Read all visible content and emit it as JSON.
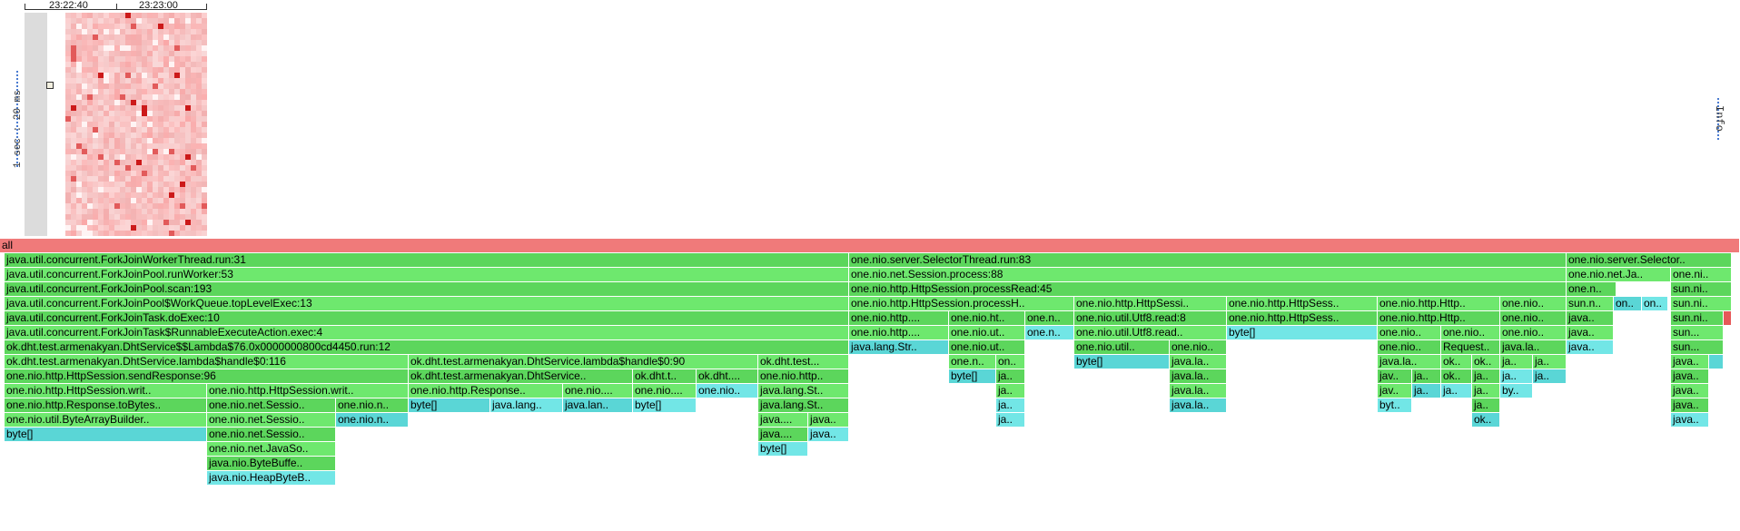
{
  "timeline": {
    "labels": [
      "23:22:40",
      "23:23:00"
    ],
    "scale": "1 sec : 20 ms",
    "info": "Info"
  },
  "colors": {
    "root": "#f07a7a",
    "green": "#5cd65c",
    "green_light": "#6ee86e",
    "teal": "#5ad6d6",
    "teal_light": "#72e6e6",
    "red": "#e65858"
  },
  "heat_seed": 7,
  "flame": [
    {
      "label": "all",
      "depth": 0,
      "start": 0,
      "w": 1916,
      "kind": "root"
    },
    {
      "label": "java.util.concurrent.ForkJoinWorkerThread.run:31",
      "depth": 1,
      "start": 5,
      "w": 930,
      "kind": "green"
    },
    {
      "label": "one.nio.server.SelectorThread.run:83",
      "depth": 1,
      "start": 935,
      "w": 790,
      "kind": "green"
    },
    {
      "label": "one.nio.server.Selector..",
      "depth": 1,
      "start": 1725,
      "w": 182,
      "kind": "green"
    },
    {
      "label": "java.util.concurrent.ForkJoinPool.runWorker:53",
      "depth": 2,
      "start": 5,
      "w": 930,
      "kind": "green"
    },
    {
      "label": "one.nio.net.Session.process:88",
      "depth": 2,
      "start": 935,
      "w": 790,
      "kind": "green"
    },
    {
      "label": "one.nio.net.Ja..",
      "depth": 2,
      "start": 1725,
      "w": 115,
      "kind": "green"
    },
    {
      "label": "one.ni..",
      "depth": 2,
      "start": 1840,
      "w": 67,
      "kind": "green"
    },
    {
      "label": "java.util.concurrent.ForkJoinPool.scan:193",
      "depth": 3,
      "start": 5,
      "w": 930,
      "kind": "green"
    },
    {
      "label": "one.nio.http.HttpSession.processRead:45",
      "depth": 3,
      "start": 935,
      "w": 790,
      "kind": "green"
    },
    {
      "label": "one.n..",
      "depth": 3,
      "start": 1725,
      "w": 55,
      "kind": "green"
    },
    {
      "label": "sun.ni..",
      "depth": 3,
      "start": 1840,
      "w": 67,
      "kind": "green"
    },
    {
      "label": "java.util.concurrent.ForkJoinPool$WorkQueue.topLevelExec:13",
      "depth": 4,
      "start": 5,
      "w": 930,
      "kind": "green"
    },
    {
      "label": "one.nio.http.HttpSession.processH..",
      "depth": 4,
      "start": 935,
      "w": 248,
      "kind": "green"
    },
    {
      "label": "one.nio.http.HttpSessi..",
      "depth": 4,
      "start": 1183,
      "w": 168,
      "kind": "green"
    },
    {
      "label": "one.nio.http.HttpSess..",
      "depth": 4,
      "start": 1351,
      "w": 166,
      "kind": "green"
    },
    {
      "label": "one.nio.http.Http..",
      "depth": 4,
      "start": 1517,
      "w": 135,
      "kind": "green"
    },
    {
      "label": "one.nio..",
      "depth": 4,
      "start": 1652,
      "w": 73,
      "kind": "green"
    },
    {
      "label": "sun.n..",
      "depth": 4,
      "start": 1725,
      "w": 52,
      "kind": "green"
    },
    {
      "label": "on..",
      "depth": 4,
      "start": 1777,
      "w": 31,
      "kind": "teal"
    },
    {
      "label": "on..",
      "depth": 4,
      "start": 1808,
      "w": 29,
      "kind": "teal"
    },
    {
      "label": "sun.ni..",
      "depth": 4,
      "start": 1840,
      "w": 67,
      "kind": "green"
    },
    {
      "label": "java.util.concurrent.ForkJoinTask.doExec:10",
      "depth": 5,
      "start": 5,
      "w": 930,
      "kind": "green"
    },
    {
      "label": "one.nio.http....",
      "depth": 5,
      "start": 935,
      "w": 110,
      "kind": "green"
    },
    {
      "label": "one.nio.ht..",
      "depth": 5,
      "start": 1045,
      "w": 84,
      "kind": "green"
    },
    {
      "label": "one.n..",
      "depth": 5,
      "start": 1129,
      "w": 54,
      "kind": "green"
    },
    {
      "label": "one.nio.util.Utf8.read:8",
      "depth": 5,
      "start": 1183,
      "w": 168,
      "kind": "green"
    },
    {
      "label": "one.nio.http.HttpSess..",
      "depth": 5,
      "start": 1351,
      "w": 166,
      "kind": "green"
    },
    {
      "label": "one.nio.http.Http..",
      "depth": 5,
      "start": 1517,
      "w": 135,
      "kind": "green"
    },
    {
      "label": "one.nio..",
      "depth": 5,
      "start": 1652,
      "w": 73,
      "kind": "green"
    },
    {
      "label": "java..",
      "depth": 5,
      "start": 1725,
      "w": 52,
      "kind": "green"
    },
    {
      "label": "sun.ni..",
      "depth": 5,
      "start": 1840,
      "w": 58,
      "kind": "green"
    },
    {
      "label": "",
      "depth": 5,
      "start": 1898,
      "w": 9,
      "kind": "red"
    },
    {
      "label": "java.util.concurrent.ForkJoinTask$RunnableExecuteAction.exec:4",
      "depth": 6,
      "start": 5,
      "w": 930,
      "kind": "green"
    },
    {
      "label": "one.nio.http....",
      "depth": 6,
      "start": 935,
      "w": 110,
      "kind": "green"
    },
    {
      "label": "one.nio.ut..",
      "depth": 6,
      "start": 1045,
      "w": 84,
      "kind": "green"
    },
    {
      "label": "one.n..",
      "depth": 6,
      "start": 1129,
      "w": 54,
      "kind": "teal"
    },
    {
      "label": "one.nio.util.Utf8.read..",
      "depth": 6,
      "start": 1183,
      "w": 168,
      "kind": "green"
    },
    {
      "label": "byte[]",
      "depth": 6,
      "start": 1351,
      "w": 166,
      "kind": "teal"
    },
    {
      "label": "one.nio..",
      "depth": 6,
      "start": 1517,
      "w": 70,
      "kind": "green"
    },
    {
      "label": "one.nio..",
      "depth": 6,
      "start": 1587,
      "w": 65,
      "kind": "green"
    },
    {
      "label": "one.nio..",
      "depth": 6,
      "start": 1652,
      "w": 73,
      "kind": "green"
    },
    {
      "label": "java..",
      "depth": 6,
      "start": 1725,
      "w": 52,
      "kind": "green"
    },
    {
      "label": "sun...",
      "depth": 6,
      "start": 1840,
      "w": 58,
      "kind": "green"
    },
    {
      "label": "ok.dht.test.armenakyan.DhtService$$Lambda$76.0x0000000800cd4450.run:12",
      "depth": 7,
      "start": 5,
      "w": 930,
      "kind": "green"
    },
    {
      "label": "java.lang.Str..",
      "depth": 7,
      "start": 935,
      "w": 110,
      "kind": "teal"
    },
    {
      "label": "one.nio.ut..",
      "depth": 7,
      "start": 1045,
      "w": 84,
      "kind": "green"
    },
    {
      "label": "one.nio.util..",
      "depth": 7,
      "start": 1183,
      "w": 105,
      "kind": "green"
    },
    {
      "label": "one.nio..",
      "depth": 7,
      "start": 1288,
      "w": 63,
      "kind": "green"
    },
    {
      "label": "one.nio..",
      "depth": 7,
      "start": 1517,
      "w": 70,
      "kind": "green"
    },
    {
      "label": "Request..",
      "depth": 7,
      "start": 1587,
      "w": 65,
      "kind": "green"
    },
    {
      "label": "java.la..",
      "depth": 7,
      "start": 1652,
      "w": 73,
      "kind": "green"
    },
    {
      "label": "java..",
      "depth": 7,
      "start": 1725,
      "w": 52,
      "kind": "teal"
    },
    {
      "label": "sun...",
      "depth": 7,
      "start": 1840,
      "w": 58,
      "kind": "green"
    },
    {
      "label": "ok.dht.test.armenakyan.DhtService.lambda$handle$0:116",
      "depth": 8,
      "start": 5,
      "w": 445,
      "kind": "green"
    },
    {
      "label": "ok.dht.test.armenakyan.DhtService.lambda$handle$0:90",
      "depth": 8,
      "start": 450,
      "w": 385,
      "kind": "green"
    },
    {
      "label": "ok.dht.test...",
      "depth": 8,
      "start": 835,
      "w": 100,
      "kind": "green"
    },
    {
      "label": "one.n..",
      "depth": 8,
      "start": 1045,
      "w": 52,
      "kind": "green"
    },
    {
      "label": "on..",
      "depth": 8,
      "start": 1097,
      "w": 32,
      "kind": "green"
    },
    {
      "label": "byte[]",
      "depth": 8,
      "start": 1183,
      "w": 105,
      "kind": "teal"
    },
    {
      "label": "java.la..",
      "depth": 8,
      "start": 1288,
      "w": 63,
      "kind": "green"
    },
    {
      "label": "java.la..",
      "depth": 8,
      "start": 1517,
      "w": 70,
      "kind": "green"
    },
    {
      "label": "ok..",
      "depth": 8,
      "start": 1587,
      "w": 34,
      "kind": "green"
    },
    {
      "label": "ok..",
      "depth": 8,
      "start": 1621,
      "w": 31,
      "kind": "green"
    },
    {
      "label": "ja..",
      "depth": 8,
      "start": 1652,
      "w": 36,
      "kind": "green"
    },
    {
      "label": "ja..",
      "depth": 8,
      "start": 1688,
      "w": 37,
      "kind": "green"
    },
    {
      "label": "java..",
      "depth": 8,
      "start": 1840,
      "w": 42,
      "kind": "green"
    },
    {
      "label": "",
      "depth": 8,
      "start": 1882,
      "w": 16,
      "kind": "teal"
    },
    {
      "label": "one.nio.http.HttpSession.sendResponse:96",
      "depth": 9,
      "start": 5,
      "w": 445,
      "kind": "green"
    },
    {
      "label": "ok.dht.test.armenakyan.DhtService..",
      "depth": 9,
      "start": 450,
      "w": 247,
      "kind": "green"
    },
    {
      "label": "ok.dht.t..",
      "depth": 9,
      "start": 697,
      "w": 70,
      "kind": "green"
    },
    {
      "label": "ok.dht....",
      "depth": 9,
      "start": 767,
      "w": 68,
      "kind": "green"
    },
    {
      "label": "one.nio.http..",
      "depth": 9,
      "start": 835,
      "w": 100,
      "kind": "green"
    },
    {
      "label": "byte[]",
      "depth": 9,
      "start": 1045,
      "w": 52,
      "kind": "teal"
    },
    {
      "label": "ja..",
      "depth": 9,
      "start": 1097,
      "w": 32,
      "kind": "green"
    },
    {
      "label": "java.la..",
      "depth": 9,
      "start": 1288,
      "w": 63,
      "kind": "green"
    },
    {
      "label": "jav..",
      "depth": 9,
      "start": 1517,
      "w": 38,
      "kind": "green"
    },
    {
      "label": "ja..",
      "depth": 9,
      "start": 1555,
      "w": 32,
      "kind": "green"
    },
    {
      "label": "ok..",
      "depth": 9,
      "start": 1587,
      "w": 34,
      "kind": "green"
    },
    {
      "label": "ja..",
      "depth": 9,
      "start": 1621,
      "w": 31,
      "kind": "green"
    },
    {
      "label": "ja..",
      "depth": 9,
      "start": 1652,
      "w": 36,
      "kind": "teal"
    },
    {
      "label": "ja..",
      "depth": 9,
      "start": 1688,
      "w": 37,
      "kind": "teal"
    },
    {
      "label": "java..",
      "depth": 9,
      "start": 1840,
      "w": 42,
      "kind": "green"
    },
    {
      "label": "one.nio.http.HttpSession.writ..",
      "depth": 10,
      "start": 5,
      "w": 223,
      "kind": "green"
    },
    {
      "label": "one.nio.http.HttpSession.writ..",
      "depth": 10,
      "start": 228,
      "w": 222,
      "kind": "green"
    },
    {
      "label": "one.nio.http.Response..",
      "depth": 10,
      "start": 450,
      "w": 170,
      "kind": "green"
    },
    {
      "label": "one.nio....",
      "depth": 10,
      "start": 620,
      "w": 77,
      "kind": "green"
    },
    {
      "label": "one.nio....",
      "depth": 10,
      "start": 697,
      "w": 70,
      "kind": "green"
    },
    {
      "label": "one.nio..",
      "depth": 10,
      "start": 767,
      "w": 68,
      "kind": "teal"
    },
    {
      "label": "java.lang.St..",
      "depth": 10,
      "start": 835,
      "w": 100,
      "kind": "green"
    },
    {
      "label": "ja..",
      "depth": 10,
      "start": 1097,
      "w": 32,
      "kind": "green"
    },
    {
      "label": "java.la..",
      "depth": 10,
      "start": 1288,
      "w": 63,
      "kind": "green"
    },
    {
      "label": "jav..",
      "depth": 10,
      "start": 1517,
      "w": 38,
      "kind": "green"
    },
    {
      "label": "ja..",
      "depth": 10,
      "start": 1555,
      "w": 32,
      "kind": "teal"
    },
    {
      "label": "ja..",
      "depth": 10,
      "start": 1587,
      "w": 34,
      "kind": "teal"
    },
    {
      "label": "ja..",
      "depth": 10,
      "start": 1621,
      "w": 31,
      "kind": "green"
    },
    {
      "label": "by..",
      "depth": 10,
      "start": 1652,
      "w": 36,
      "kind": "teal"
    },
    {
      "label": "java..",
      "depth": 10,
      "start": 1840,
      "w": 42,
      "kind": "green"
    },
    {
      "label": "one.nio.http.Response.toBytes..",
      "depth": 11,
      "start": 5,
      "w": 223,
      "kind": "green"
    },
    {
      "label": "one.nio.net.Sessio..",
      "depth": 11,
      "start": 228,
      "w": 142,
      "kind": "green"
    },
    {
      "label": "one.nio.n..",
      "depth": 11,
      "start": 370,
      "w": 80,
      "kind": "green"
    },
    {
      "label": "byte[]",
      "depth": 11,
      "start": 450,
      "w": 90,
      "kind": "teal"
    },
    {
      "label": "java.lang..",
      "depth": 11,
      "start": 540,
      "w": 80,
      "kind": "teal"
    },
    {
      "label": "java.lan..",
      "depth": 11,
      "start": 620,
      "w": 77,
      "kind": "teal"
    },
    {
      "label": "byte[]",
      "depth": 11,
      "start": 697,
      "w": 70,
      "kind": "teal"
    },
    {
      "label": "java.lang.St..",
      "depth": 11,
      "start": 835,
      "w": 100,
      "kind": "green"
    },
    {
      "label": "ja..",
      "depth": 11,
      "start": 1097,
      "w": 32,
      "kind": "teal"
    },
    {
      "label": "java.la..",
      "depth": 11,
      "start": 1288,
      "w": 63,
      "kind": "teal"
    },
    {
      "label": "byt..",
      "depth": 11,
      "start": 1517,
      "w": 38,
      "kind": "teal"
    },
    {
      "label": "ja..",
      "depth": 11,
      "start": 1621,
      "w": 31,
      "kind": "green"
    },
    {
      "label": "java..",
      "depth": 11,
      "start": 1840,
      "w": 42,
      "kind": "green"
    },
    {
      "label": "one.nio.util.ByteArrayBuilder..",
      "depth": 12,
      "start": 5,
      "w": 223,
      "kind": "green"
    },
    {
      "label": "one.nio.net.Sessio..",
      "depth": 12,
      "start": 228,
      "w": 142,
      "kind": "green"
    },
    {
      "label": "one.nio.n..",
      "depth": 12,
      "start": 370,
      "w": 80,
      "kind": "teal"
    },
    {
      "label": "java....",
      "depth": 12,
      "start": 835,
      "w": 55,
      "kind": "green"
    },
    {
      "label": "java..",
      "depth": 12,
      "start": 890,
      "w": 45,
      "kind": "green"
    },
    {
      "label": "ja..",
      "depth": 12,
      "start": 1097,
      "w": 32,
      "kind": "teal"
    },
    {
      "label": "ok..",
      "depth": 12,
      "start": 1621,
      "w": 31,
      "kind": "teal"
    },
    {
      "label": "java..",
      "depth": 12,
      "start": 1840,
      "w": 42,
      "kind": "teal"
    },
    {
      "label": "byte[]",
      "depth": 13,
      "start": 5,
      "w": 223,
      "kind": "teal"
    },
    {
      "label": "one.nio.net.Sessio..",
      "depth": 13,
      "start": 228,
      "w": 142,
      "kind": "green"
    },
    {
      "label": "java....",
      "depth": 13,
      "start": 835,
      "w": 55,
      "kind": "green"
    },
    {
      "label": "java..",
      "depth": 13,
      "start": 890,
      "w": 45,
      "kind": "teal"
    },
    {
      "label": "one.nio.net.JavaSo..",
      "depth": 14,
      "start": 228,
      "w": 142,
      "kind": "green"
    },
    {
      "label": "byte[]",
      "depth": 14,
      "start": 835,
      "w": 55,
      "kind": "teal"
    },
    {
      "label": "java.nio.ByteBuffe..",
      "depth": 15,
      "start": 228,
      "w": 142,
      "kind": "green"
    },
    {
      "label": "java.nio.HeapByteB..",
      "depth": 16,
      "start": 228,
      "w": 142,
      "kind": "teal"
    }
  ]
}
